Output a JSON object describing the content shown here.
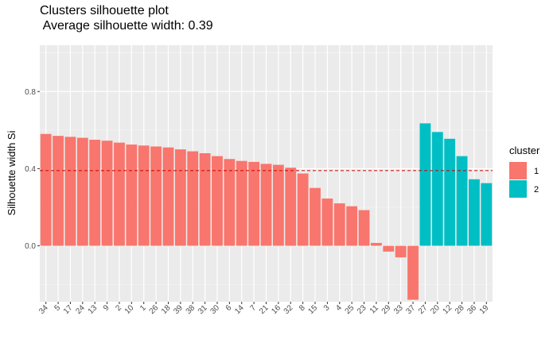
{
  "chart_data": {
    "type": "bar",
    "title": "Clusters silhouette plot",
    "subtitle": " Average silhouette width: 0.39",
    "xlabel": "",
    "ylabel": "Silhouette width Si",
    "ylim": [
      -0.29,
      1.04
    ],
    "yticks": [
      0.0,
      0.4,
      0.8
    ],
    "ytick_labels": [
      "0.0",
      "0.4",
      "0.8"
    ],
    "grid": true,
    "legend_placement": "right",
    "legend_title": "cluster",
    "average_line": 0.39,
    "categories": [
      "34",
      "5",
      "17",
      "24",
      "13",
      "9",
      "2",
      "10",
      "1",
      "26",
      "18",
      "39",
      "38",
      "31",
      "30",
      "6",
      "14",
      "7",
      "21",
      "16",
      "32",
      "8",
      "15",
      "3",
      "4",
      "25",
      "23",
      "11",
      "29",
      "33",
      "37",
      "27",
      "20",
      "12",
      "28",
      "36",
      "19"
    ],
    "values": [
      0.58,
      0.57,
      0.565,
      0.56,
      0.55,
      0.545,
      0.535,
      0.525,
      0.52,
      0.515,
      0.51,
      0.5,
      0.49,
      0.48,
      0.465,
      0.45,
      0.44,
      0.435,
      0.425,
      0.42,
      0.405,
      0.375,
      0.3,
      0.245,
      0.22,
      0.205,
      0.185,
      0.015,
      -0.03,
      -0.06,
      -0.28,
      0.635,
      0.59,
      0.555,
      0.465,
      0.345,
      0.325
    ],
    "clusters": [
      "1",
      "1",
      "1",
      "1",
      "1",
      "1",
      "1",
      "1",
      "1",
      "1",
      "1",
      "1",
      "1",
      "1",
      "1",
      "1",
      "1",
      "1",
      "1",
      "1",
      "1",
      "1",
      "1",
      "1",
      "1",
      "1",
      "1",
      "1",
      "1",
      "1",
      "1",
      "2",
      "2",
      "2",
      "2",
      "2",
      "2"
    ],
    "series": [
      {
        "name": "1",
        "color": "#F8766D"
      },
      {
        "name": "2",
        "color": "#00BFC4"
      }
    ],
    "line_color": "#CC0000"
  }
}
